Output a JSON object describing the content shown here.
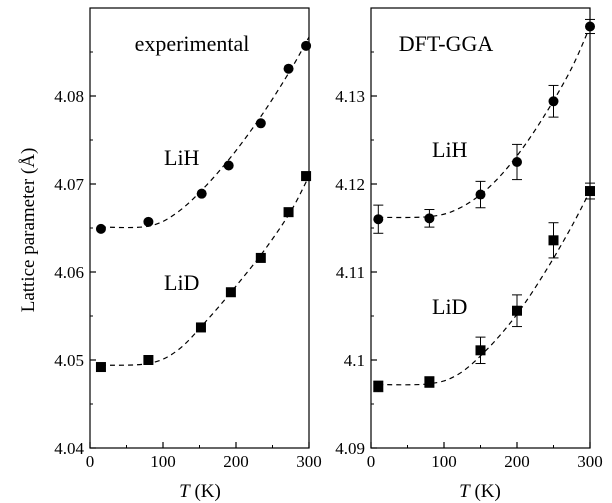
{
  "figure": {
    "ylabel": "Lattice parameter (Å)",
    "xlabel_var": "T",
    "xlabel_unit": " (K)"
  },
  "chart_data": [
    {
      "type": "scatter",
      "title": "experimental",
      "xlabel": "T (K)",
      "ylabel": "Lattice parameter (Å)",
      "xlim": [
        0,
        300
      ],
      "ylim": [
        4.04,
        4.09
      ],
      "xticks": [
        0,
        100,
        200,
        300
      ],
      "yticks": [
        4.04,
        4.05,
        4.06,
        4.07,
        4.08
      ],
      "ytick_labels": [
        "4.04",
        "4.05",
        "4.06",
        "4.07",
        "4.08"
      ],
      "series": [
        {
          "name": "LiH",
          "marker": "circle",
          "x": [
            15,
            80,
            153,
            190,
            234,
            272,
            296
          ],
          "y": [
            4.0649,
            4.0657,
            4.0689,
            4.0721,
            4.0769,
            4.0831,
            4.0857
          ]
        },
        {
          "name": "LiD",
          "marker": "square",
          "x": [
            15,
            80,
            152,
            193,
            234,
            272,
            296
          ],
          "y": [
            4.0492,
            4.05,
            4.0537,
            4.0577,
            4.0616,
            4.0668,
            4.0709
          ]
        }
      ],
      "fits": [
        {
          "series": "LiH",
          "x": [
            15,
            80,
            120,
            160,
            200,
            240,
            275,
            300
          ],
          "y": [
            4.0651,
            4.0652,
            4.0668,
            4.0699,
            4.0738,
            4.0784,
            4.083,
            4.0867
          ]
        },
        {
          "series": "LiD",
          "x": [
            15,
            80,
            120,
            160,
            200,
            240,
            275,
            300
          ],
          "y": [
            4.0494,
            4.0496,
            4.0511,
            4.0545,
            4.0584,
            4.0626,
            4.0669,
            4.0709
          ]
        }
      ]
    },
    {
      "type": "scatter",
      "title": "DFT-GGA",
      "xlabel": "T (K)",
      "xlim": [
        0,
        300
      ],
      "ylim": [
        4.09,
        4.14
      ],
      "xticks": [
        0,
        100,
        200,
        300
      ],
      "yticks": [
        4.09,
        4.1,
        4.11,
        4.12,
        4.13
      ],
      "ytick_labels": [
        "4.09",
        "4.1",
        "4.11",
        "4.12",
        "4.13"
      ],
      "series": [
        {
          "name": "LiH",
          "marker": "circle",
          "x": [
            10,
            80,
            150,
            200,
            250,
            300
          ],
          "y": [
            4.116,
            4.1161,
            4.1188,
            4.1225,
            4.1294,
            4.1379
          ],
          "err": [
            0.0016,
            0.001,
            0.0015,
            0.002,
            0.0018,
            0.0008
          ]
        },
        {
          "name": "LiD",
          "marker": "square",
          "x": [
            10,
            80,
            150,
            200,
            250,
            300
          ],
          "y": [
            4.097,
            4.0975,
            4.1011,
            4.1056,
            4.1136,
            4.1192
          ],
          "err": [
            0.0006,
            0.0006,
            0.0015,
            0.0018,
            0.002,
            0.0009
          ]
        }
      ],
      "fits": [
        {
          "series": "LiH",
          "x": [
            10,
            80,
            120,
            160,
            200,
            240,
            275,
            300
          ],
          "y": [
            4.1162,
            4.1163,
            4.1172,
            4.1195,
            4.1232,
            4.1281,
            4.1332,
            4.1379
          ]
        },
        {
          "series": "LiD",
          "x": [
            10,
            80,
            120,
            160,
            200,
            240,
            275,
            300
          ],
          "y": [
            4.0972,
            4.0973,
            4.0984,
            4.1013,
            4.1052,
            4.1102,
            4.1152,
            4.1192
          ]
        }
      ]
    }
  ]
}
